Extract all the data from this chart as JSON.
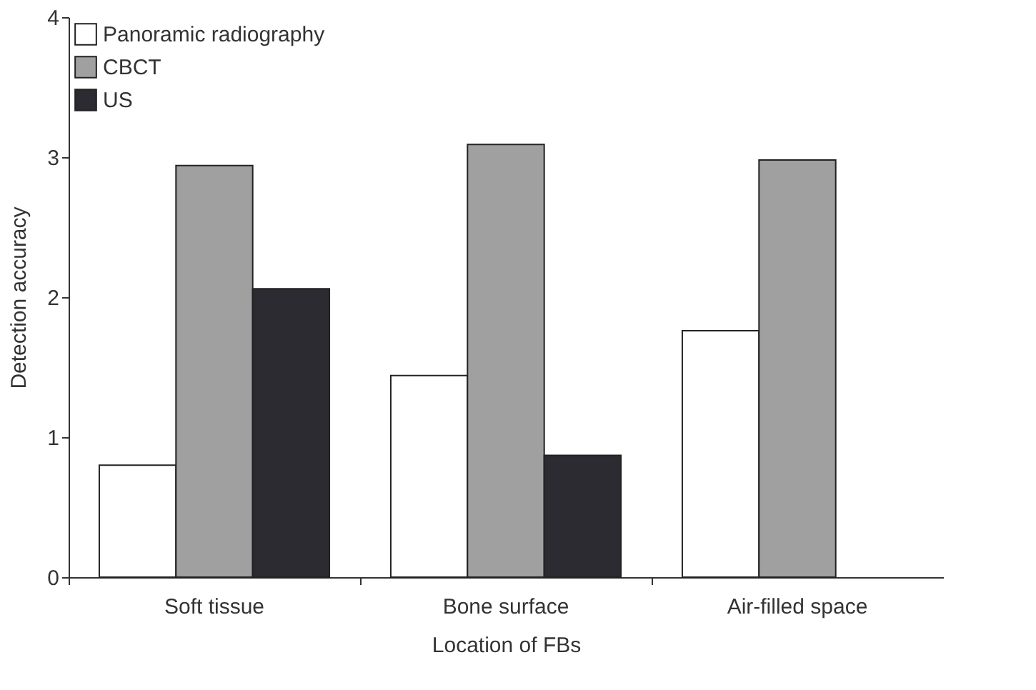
{
  "chart_data": {
    "type": "bar",
    "xlabel": "Location of FBs",
    "ylabel": "Detection accuracy",
    "categories": [
      "Soft tissue",
      "Bone surface",
      "Air-filled space"
    ],
    "series": [
      {
        "name": "Panoramic radiography",
        "color": "#ffffff",
        "values": [
          0.8,
          1.44,
          1.76
        ]
      },
      {
        "name": "CBCT",
        "color": "#a0a0a0",
        "values": [
          2.94,
          3.09,
          2.98
        ]
      },
      {
        "name": "US",
        "color": "#2b2b31",
        "values": [
          2.06,
          0.87,
          null
        ]
      }
    ],
    "ylim": [
      0,
      4
    ],
    "yticks": [
      0,
      1,
      2,
      3,
      4
    ],
    "grid": false,
    "legend": "top left"
  }
}
